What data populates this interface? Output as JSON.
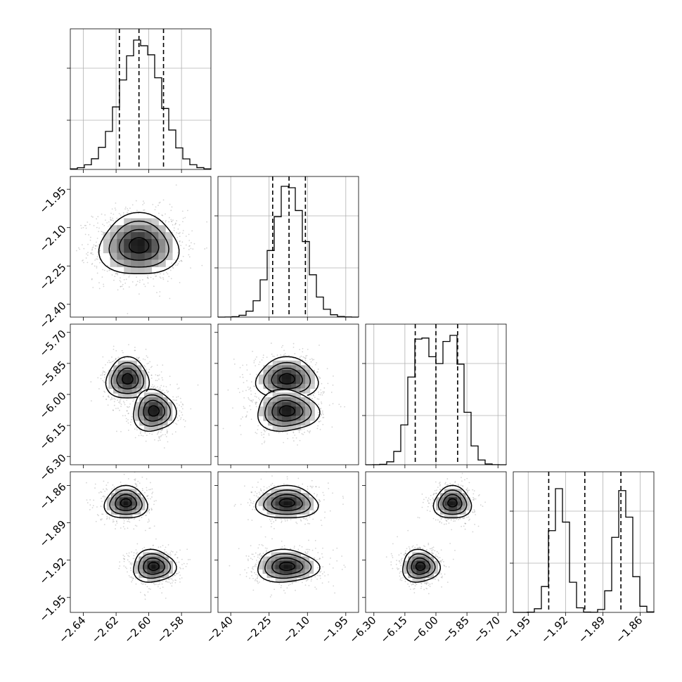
{
  "chart_data": {
    "type": "corner",
    "title": "",
    "parameters": [
      {
        "range": [
          -2.648,
          -2.562
        ],
        "ticks": [
          -2.64,
          -2.62,
          -2.6,
          -2.58
        ],
        "tick_labels": [
          "−2.64",
          "−2.62",
          "−2.60",
          "−2.58"
        ],
        "quantiles": [
          -2.618,
          -2.606,
          -2.591
        ],
        "modes": [
          {
            "mu": -2.605,
            "sigma": 0.0125,
            "weight": 1.0
          }
        ],
        "hist_peak_fraction": 0.92
      },
      {
        "range": [
          -2.45,
          -1.9
        ],
        "ticks": [
          -2.4,
          -2.25,
          -2.1,
          -1.95
        ],
        "tick_labels": [
          "−2.40",
          "−2.25",
          "−2.10",
          "−1.95"
        ],
        "quantiles": [
          -2.236,
          -2.172,
          -2.108
        ],
        "modes": [
          {
            "mu": -2.172,
            "sigma": 0.062,
            "weight": 1.0
          }
        ],
        "hist_peak_fraction": 0.93
      },
      {
        "range": [
          -6.34,
          -5.66
        ],
        "ticks": [
          -6.3,
          -6.15,
          -6.0,
          -5.85,
          -5.7
        ],
        "tick_labels": [
          "−6.30",
          "−6.15",
          "−6.00",
          "−5.85",
          "−5.70"
        ],
        "quantiles": [
          -6.1,
          -6.0,
          -5.895
        ],
        "modes": [
          {
            "mu": -6.07,
            "sigma": 0.055,
            "weight": 0.5
          },
          {
            "mu": -5.92,
            "sigma": 0.055,
            "weight": 0.5
          }
        ],
        "hist_peak_fraction": 0.92
      },
      {
        "range": [
          -1.962,
          -1.849
        ],
        "ticks": [
          -1.95,
          -1.92,
          -1.89,
          -1.86
        ],
        "tick_labels": [
          "−1.95",
          "−1.92",
          "−1.89",
          "−1.86"
        ],
        "quantiles": [
          -1.9335,
          -1.9045,
          -1.8755
        ],
        "modes": [
          {
            "mu": -1.925,
            "sigma": 0.0065,
            "weight": 0.5
          },
          {
            "mu": -1.8735,
            "sigma": 0.0065,
            "weight": 0.5
          }
        ],
        "hist_peak_fraction": 0.88
      }
    ],
    "pair_clusters": [
      {
        "pair": [
          0,
          1
        ],
        "clusters": [
          {
            "cx": -2.606,
            "cy": -2.17,
            "sx": 0.012,
            "sy": 0.06
          }
        ]
      },
      {
        "pair": [
          0,
          2
        ],
        "clusters": [
          {
            "cx": -2.613,
            "cy": -5.925,
            "sx": 0.0065,
            "sy": 0.05
          },
          {
            "cx": -2.597,
            "cy": -6.08,
            "sx": 0.0065,
            "sy": 0.05
          }
        ]
      },
      {
        "pair": [
          1,
          2
        ],
        "clusters": [
          {
            "cx": -2.18,
            "cy": -5.925,
            "sx": 0.06,
            "sy": 0.05
          },
          {
            "cx": -2.18,
            "cy": -6.08,
            "sx": 0.06,
            "sy": 0.05
          }
        ]
      },
      {
        "pair": [
          0,
          3
        ],
        "clusters": [
          {
            "cx": -2.614,
            "cy": -1.874,
            "sx": 0.0065,
            "sy": 0.0065
          },
          {
            "cx": -2.597,
            "cy": -1.925,
            "sx": 0.0065,
            "sy": 0.0065
          }
        ]
      },
      {
        "pair": [
          1,
          3
        ],
        "clusters": [
          {
            "cx": -2.18,
            "cy": -1.874,
            "sx": 0.06,
            "sy": 0.0065
          },
          {
            "cx": -2.18,
            "cy": -1.925,
            "sx": 0.06,
            "sy": 0.0065
          }
        ]
      },
      {
        "pair": [
          2,
          3
        ],
        "clusters": [
          {
            "cx": -5.92,
            "cy": -1.874,
            "sx": 0.045,
            "sy": 0.0065
          },
          {
            "cx": -6.075,
            "cy": -1.925,
            "sx": 0.045,
            "sy": 0.0065
          }
        ]
      }
    ],
    "grid": true,
    "show_datapoints": true,
    "contour_levels_sigma": [
      0.5,
      1.0,
      1.5,
      2.0
    ],
    "colors": {
      "points": "#888888",
      "density_dark": "#000000",
      "grid": "#b0b0b0"
    }
  }
}
